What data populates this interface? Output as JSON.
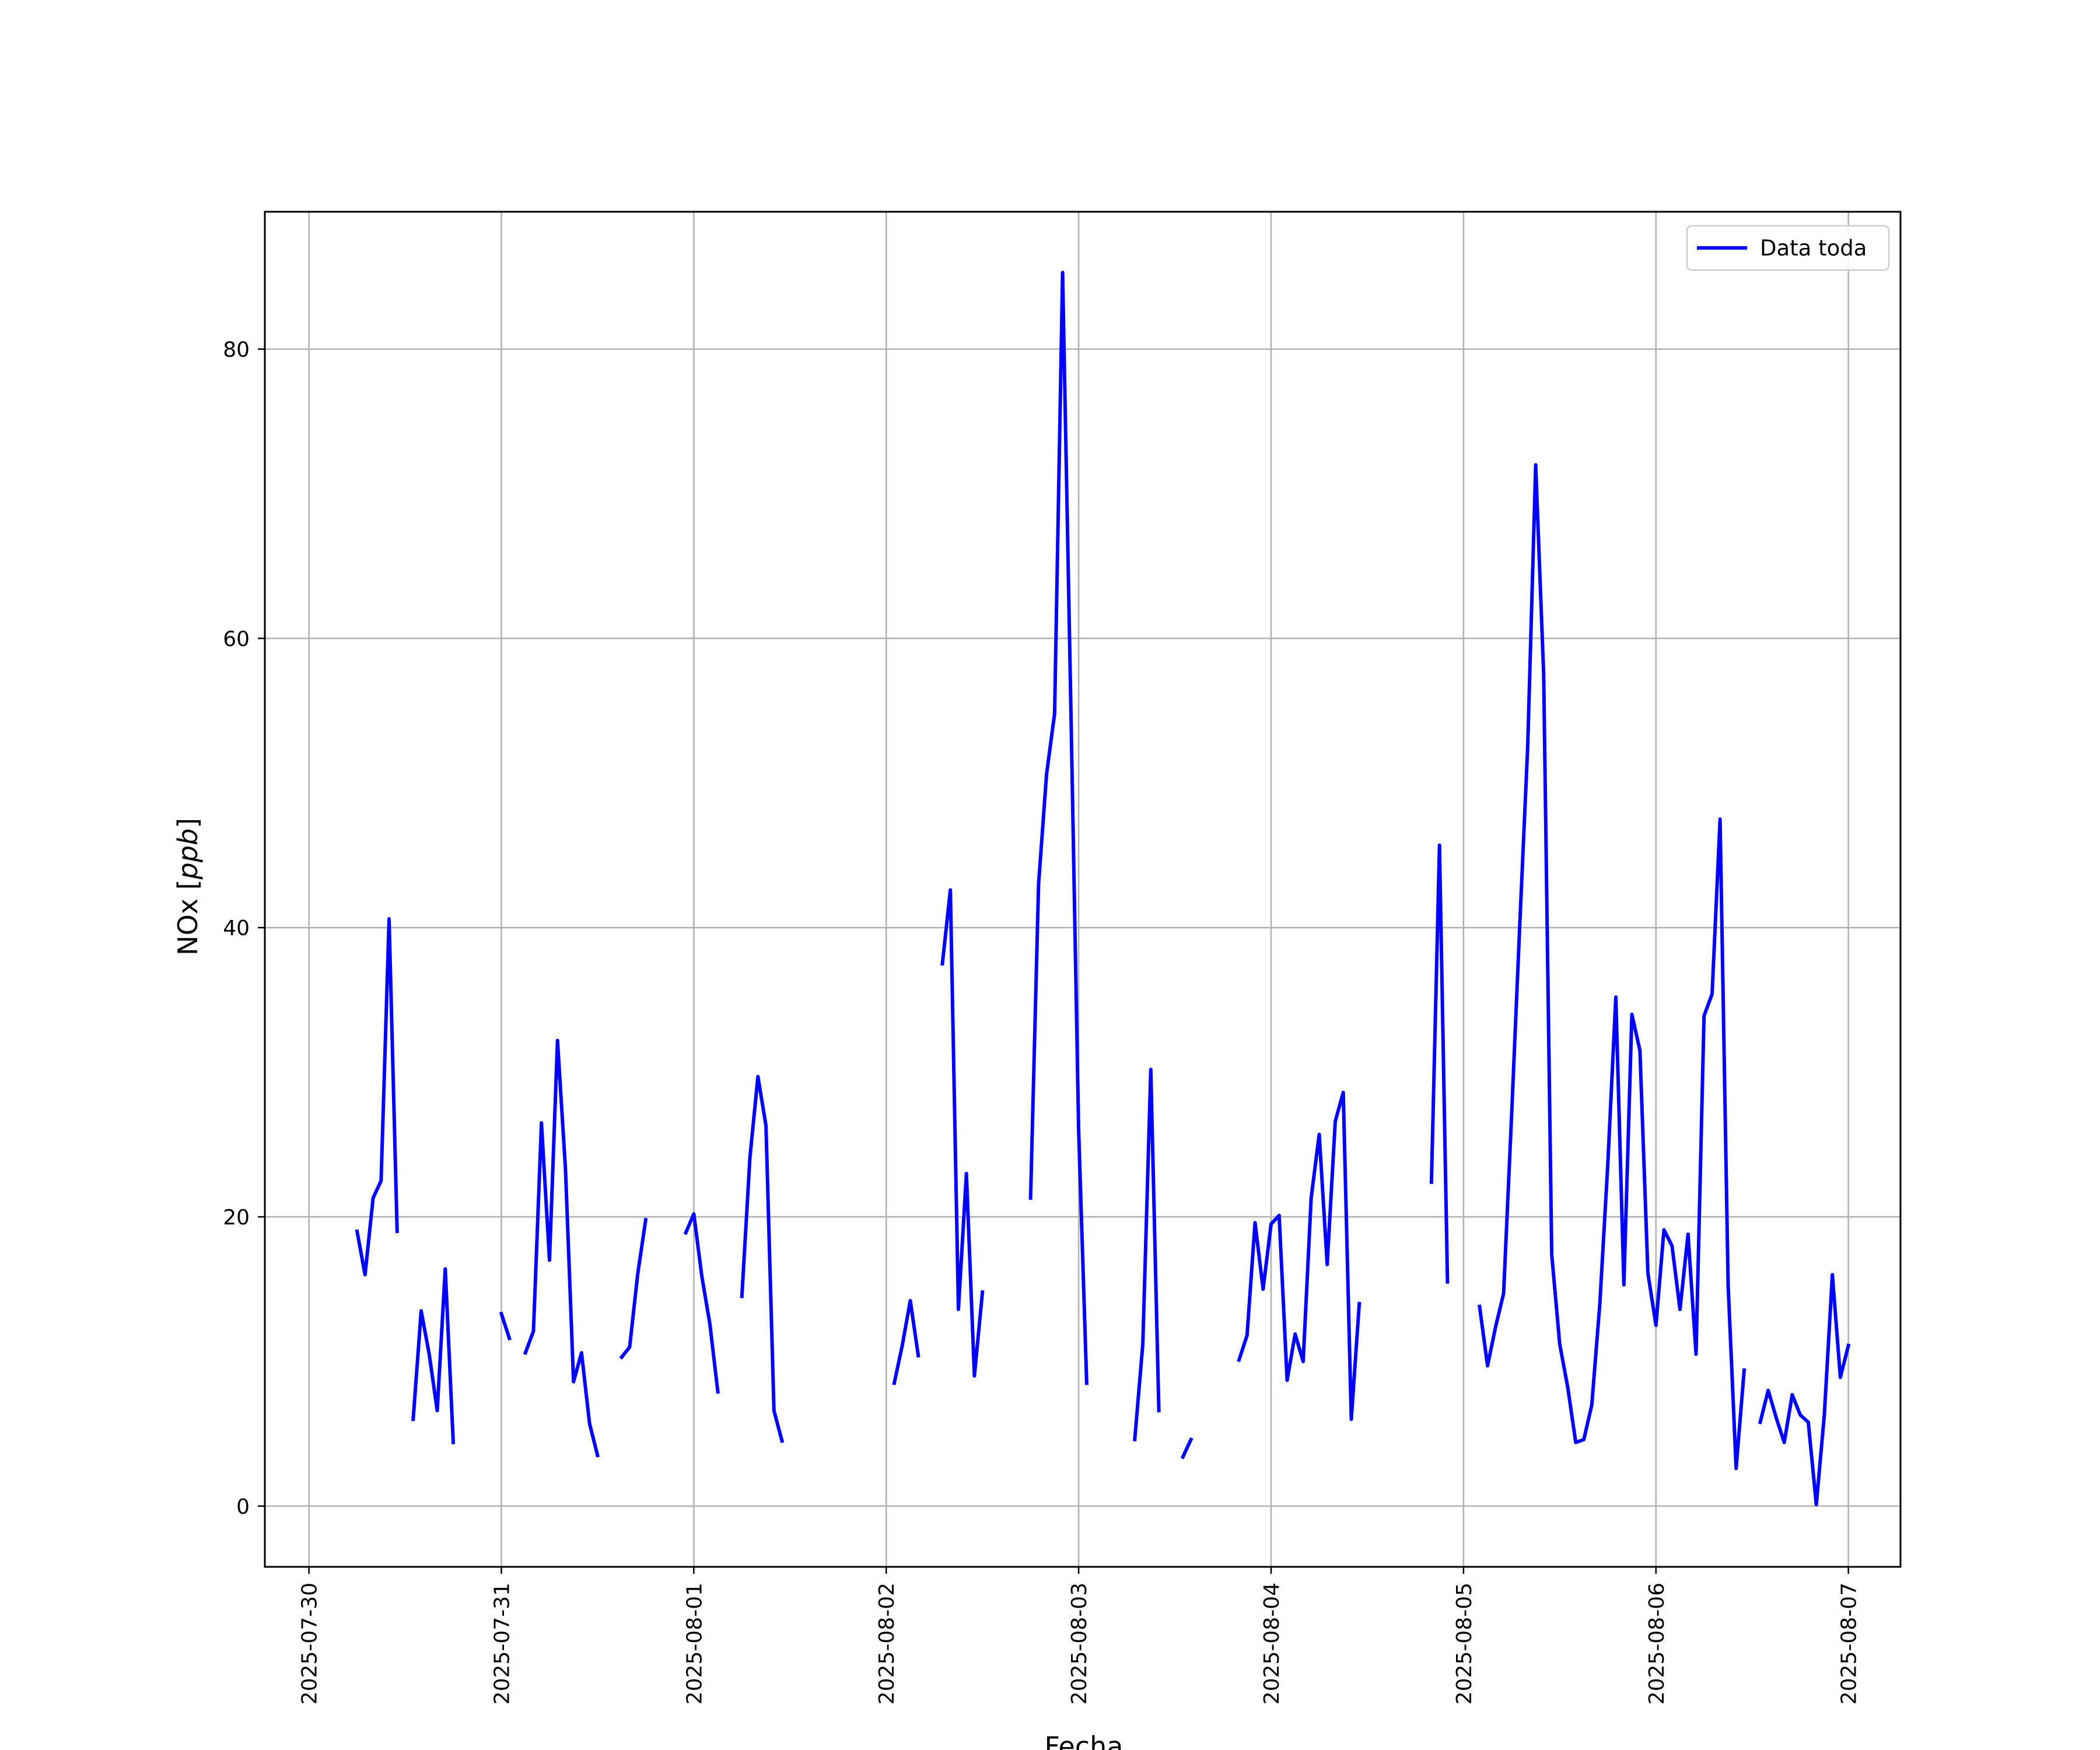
{
  "chart_data": {
    "type": "line",
    "title": "",
    "xlabel": "Fecha",
    "ylabel": "NOx [ppb]",
    "ylabel_parts": {
      "main": "NOx ",
      "unit_open": "[",
      "unit": "ppb",
      "unit_close": "]"
    },
    "xlim": [
      "2025-07-29T18:30",
      "2025-08-07T06:30"
    ],
    "ylim": [
      -4.2,
      89.5
    ],
    "grid": true,
    "legend_position": "upper right",
    "x_ticks": [
      "2025-07-30",
      "2025-07-31",
      "2025-08-01",
      "2025-08-02",
      "2025-08-03",
      "2025-08-04",
      "2025-08-05",
      "2025-08-06",
      "2025-08-07"
    ],
    "y_ticks": [
      0,
      20,
      40,
      60,
      80
    ],
    "series": [
      {
        "name": "Data toda",
        "color": "#0000ff",
        "segments": [
          [
            [
              "2025-07-30T06:00",
              19.0
            ],
            [
              "2025-07-30T07:00",
              16.0
            ],
            [
              "2025-07-30T08:00",
              21.3
            ],
            [
              "2025-07-30T09:00",
              22.5
            ],
            [
              "2025-07-30T10:00",
              40.6
            ],
            [
              "2025-07-30T11:00",
              19.0
            ]
          ],
          [
            [
              "2025-07-30T13:00",
              6.0
            ],
            [
              "2025-07-30T14:00",
              13.5
            ],
            [
              "2025-07-30T15:00",
              10.5
            ],
            [
              "2025-07-30T16:00",
              6.6
            ],
            [
              "2025-07-30T17:00",
              16.4
            ],
            [
              "2025-07-30T18:00",
              4.4
            ]
          ],
          [
            [
              "2025-07-31T00:00",
              13.3
            ],
            [
              "2025-07-31T01:00",
              11.6
            ]
          ],
          [
            [
              "2025-07-31T03:00",
              10.6
            ],
            [
              "2025-07-31T04:00",
              12.1
            ],
            [
              "2025-07-31T05:00",
              26.5
            ],
            [
              "2025-07-31T06:00",
              17.0
            ],
            [
              "2025-07-31T07:00",
              32.2
            ],
            [
              "2025-07-31T08:00",
              23.3
            ],
            [
              "2025-07-31T09:00",
              8.6
            ],
            [
              "2025-07-31T10:00",
              10.6
            ],
            [
              "2025-07-31T11:00",
              5.7
            ],
            [
              "2025-07-31T12:00",
              3.5
            ]
          ],
          [
            [
              "2025-07-31T15:00",
              10.3
            ],
            [
              "2025-07-31T16:00",
              11.0
            ],
            [
              "2025-07-31T17:00",
              16.0
            ],
            [
              "2025-07-31T18:00",
              19.8
            ]
          ],
          [
            [
              "2025-07-31T23:00",
              18.9
            ],
            [
              "2025-08-01T00:00",
              20.2
            ],
            [
              "2025-08-01T01:00",
              15.9
            ],
            [
              "2025-08-01T02:00",
              12.6
            ],
            [
              "2025-08-01T03:00",
              7.9
            ]
          ],
          [
            [
              "2025-08-01T06:00",
              14.5
            ],
            [
              "2025-08-01T07:00",
              24.1
            ],
            [
              "2025-08-01T08:00",
              29.7
            ],
            [
              "2025-08-01T09:00",
              26.3
            ],
            [
              "2025-08-01T10:00",
              6.6
            ],
            [
              "2025-08-01T11:00",
              4.5
            ]
          ],
          [
            [
              "2025-08-02T01:00",
              8.5
            ],
            [
              "2025-08-02T02:00",
              11.1
            ],
            [
              "2025-08-02T03:00",
              14.2
            ],
            [
              "2025-08-02T04:00",
              10.4
            ]
          ],
          [
            [
              "2025-08-02T07:00",
              37.5
            ],
            [
              "2025-08-02T08:00",
              42.6
            ],
            [
              "2025-08-02T09:00",
              13.6
            ],
            [
              "2025-08-02T10:00",
              23.0
            ],
            [
              "2025-08-02T11:00",
              9.0
            ],
            [
              "2025-08-02T12:00",
              14.8
            ]
          ],
          [
            [
              "2025-08-02T18:00",
              21.3
            ],
            [
              "2025-08-02T19:00",
              43.0
            ],
            [
              "2025-08-02T20:00",
              50.6
            ],
            [
              "2025-08-02T21:00",
              54.8
            ],
            [
              "2025-08-02T22:00",
              85.3
            ],
            [
              "2025-08-02T23:00",
              56.0
            ],
            [
              "2025-08-03T00:00",
              26.0
            ],
            [
              "2025-08-03T01:00",
              8.5
            ]
          ],
          [
            [
              "2025-08-03T07:00",
              4.6
            ],
            [
              "2025-08-03T08:00",
              11.2
            ],
            [
              "2025-08-03T09:00",
              30.2
            ],
            [
              "2025-08-03T10:00",
              6.6
            ]
          ],
          [
            [
              "2025-08-03T13:00",
              3.4
            ],
            [
              "2025-08-03T14:00",
              4.6
            ]
          ],
          [
            [
              "2025-08-03T20:00",
              10.1
            ],
            [
              "2025-08-03T21:00",
              11.8
            ],
            [
              "2025-08-03T22:00",
              19.6
            ],
            [
              "2025-08-03T23:00",
              15.0
            ],
            [
              "2025-08-04T00:00",
              19.5
            ],
            [
              "2025-08-04T01:00",
              20.1
            ],
            [
              "2025-08-04T02:00",
              8.7
            ],
            [
              "2025-08-04T03:00",
              11.9
            ],
            [
              "2025-08-04T04:00",
              10.0
            ],
            [
              "2025-08-04T05:00",
              21.3
            ],
            [
              "2025-08-04T06:00",
              25.7
            ],
            [
              "2025-08-04T07:00",
              16.7
            ],
            [
              "2025-08-04T08:00",
              26.6
            ],
            [
              "2025-08-04T09:00",
              28.6
            ],
            [
              "2025-08-04T10:00",
              6.0
            ],
            [
              "2025-08-04T11:00",
              14.0
            ]
          ],
          [
            [
              "2025-08-04T20:00",
              22.4
            ],
            [
              "2025-08-04T21:00",
              45.7
            ],
            [
              "2025-08-04T22:00",
              15.5
            ]
          ],
          [
            [
              "2025-08-05T02:00",
              13.8
            ],
            [
              "2025-08-05T03:00",
              9.7
            ],
            [
              "2025-08-05T04:00",
              12.4
            ],
            [
              "2025-08-05T05:00",
              14.7
            ],
            [
              "2025-08-05T06:00",
              27.1
            ],
            [
              "2025-08-05T07:00",
              40.0
            ],
            [
              "2025-08-05T08:00",
              52.5
            ],
            [
              "2025-08-05T09:00",
              72.0
            ],
            [
              "2025-08-05T10:00",
              57.5
            ],
            [
              "2025-08-05T11:00",
              17.4
            ],
            [
              "2025-08-05T12:00",
              11.2
            ],
            [
              "2025-08-05T13:00",
              8.2
            ],
            [
              "2025-08-05T14:00",
              4.4
            ],
            [
              "2025-08-05T15:00",
              4.6
            ],
            [
              "2025-08-05T16:00",
              7.0
            ],
            [
              "2025-08-05T17:00",
              14.0
            ],
            [
              "2025-08-05T18:00",
              23.7
            ],
            [
              "2025-08-05T19:00",
              35.2
            ],
            [
              "2025-08-05T20:00",
              15.3
            ],
            [
              "2025-08-05T21:00",
              34.0
            ],
            [
              "2025-08-05T22:00",
              31.5
            ],
            [
              "2025-08-05T23:00",
              16.1
            ],
            [
              "2025-08-06T00:00",
              12.5
            ],
            [
              "2025-08-06T01:00",
              19.1
            ],
            [
              "2025-08-06T02:00",
              18.0
            ],
            [
              "2025-08-06T03:00",
              13.6
            ],
            [
              "2025-08-06T04:00",
              18.8
            ],
            [
              "2025-08-06T05:00",
              10.5
            ],
            [
              "2025-08-06T06:00",
              33.9
            ],
            [
              "2025-08-06T07:00",
              35.4
            ],
            [
              "2025-08-06T08:00",
              47.5
            ],
            [
              "2025-08-06T09:00",
              15.3
            ],
            [
              "2025-08-06T10:00",
              2.6
            ],
            [
              "2025-08-06T11:00",
              9.4
            ]
          ],
          [
            [
              "2025-08-06T13:00",
              5.8
            ],
            [
              "2025-08-06T14:00",
              8.0
            ],
            [
              "2025-08-06T15:00",
              6.1
            ],
            [
              "2025-08-06T16:00",
              4.4
            ],
            [
              "2025-08-06T17:00",
              7.7
            ],
            [
              "2025-08-06T18:00",
              6.3
            ],
            [
              "2025-08-06T19:00",
              5.8
            ],
            [
              "2025-08-06T20:00",
              0.1
            ],
            [
              "2025-08-06T21:00",
              6.3
            ],
            [
              "2025-08-06T22:00",
              16.0
            ],
            [
              "2025-08-06T23:00",
              8.9
            ],
            [
              "2025-08-07T00:00",
              11.1
            ]
          ]
        ]
      }
    ]
  }
}
